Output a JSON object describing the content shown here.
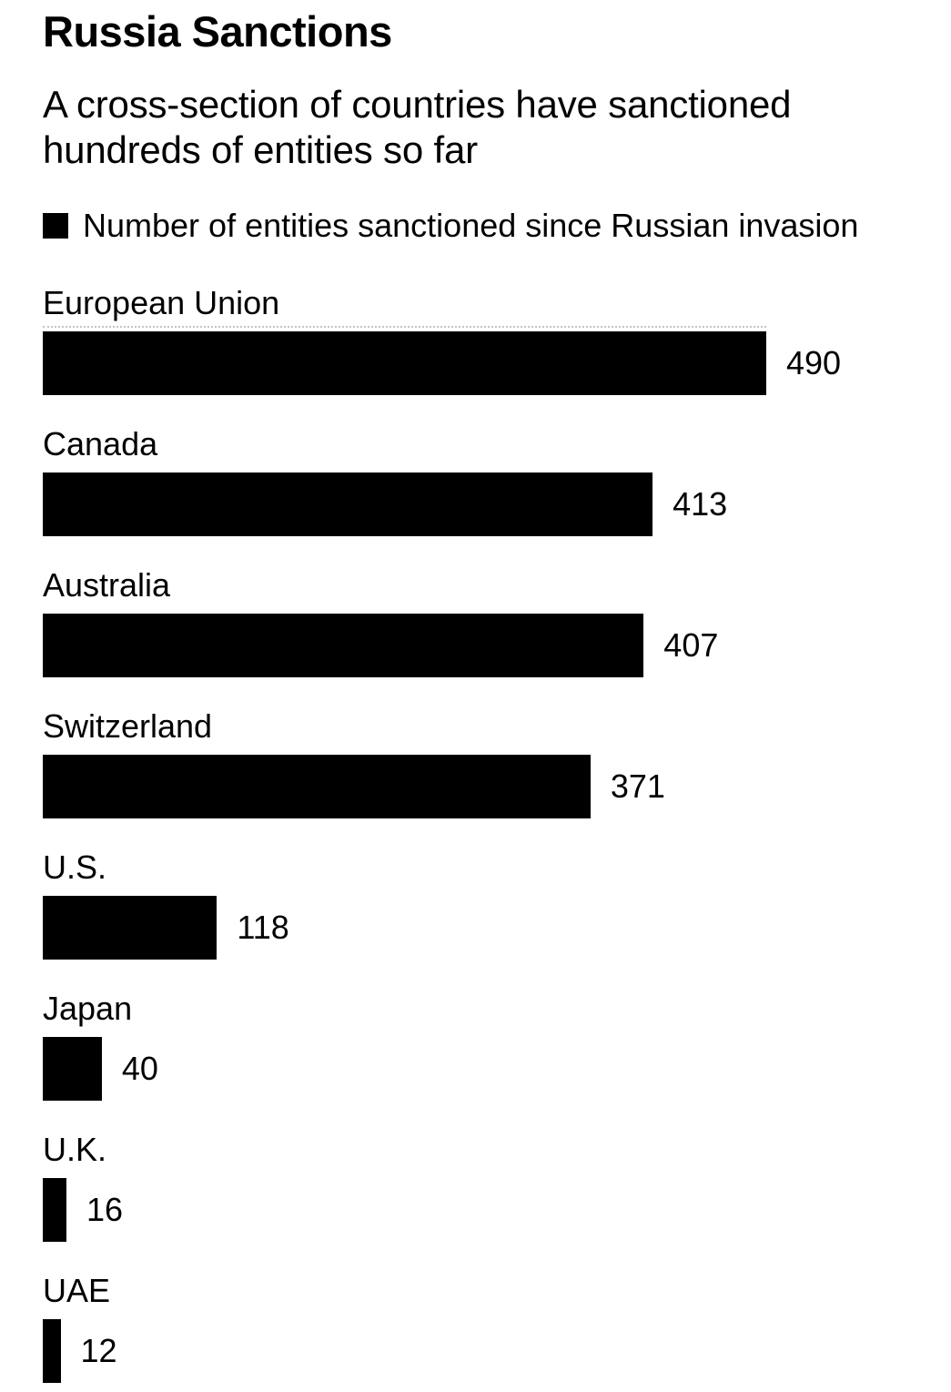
{
  "header": {
    "title": "Russia Sanctions",
    "subtitle": "A cross-section of countries have sanctioned hundreds of entities so far"
  },
  "legend": {
    "label": "Number of entities sanctioned since Russian invasion",
    "swatch_color": "#000000"
  },
  "chart_data": {
    "type": "bar",
    "orientation": "horizontal",
    "title": "Russia Sanctions",
    "subtitle": "A cross-section of countries have sanctioned hundreds of entities so far",
    "series_label": "Number of entities sanctioned since Russian invasion",
    "categories": [
      "European Union",
      "Canada",
      "Australia",
      "Switzerland",
      "U.S.",
      "Japan",
      "U.K.",
      "UAE"
    ],
    "values": [
      490,
      413,
      407,
      371,
      118,
      40,
      16,
      12
    ],
    "xlim": [
      0,
      490
    ],
    "bar_color": "#000000",
    "value_labels_shown": true,
    "grid": "single dotted rule at top of plot area",
    "legend_position": "top-left"
  }
}
